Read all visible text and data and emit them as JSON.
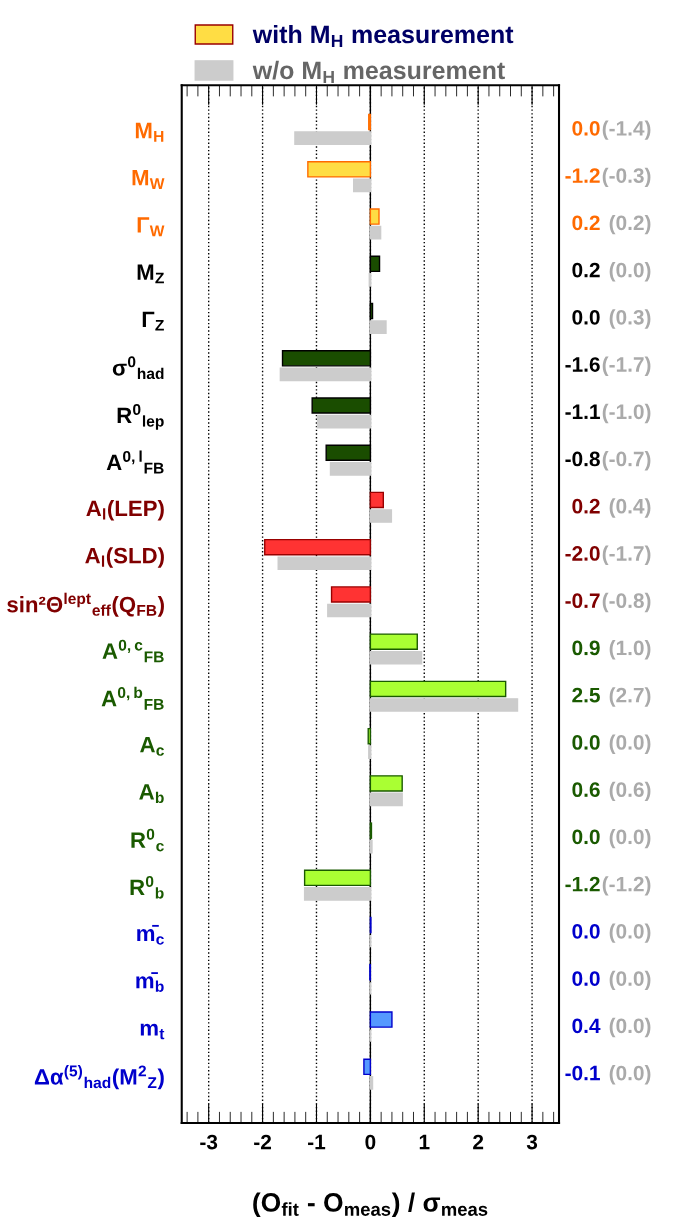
{
  "chart_data": {
    "type": "bar",
    "orientation": "horizontal",
    "xlabel": "(O$_{fit}$ - O$_{meas}$) / σ$_{meas}$",
    "categories": [
      "M$_{H}$",
      "M$_{W}$",
      "Γ$_{W}$",
      "M$_{Z}$",
      "Γ$_{Z}$",
      "σ$^{0}$$_{had}$",
      "R$^{0}$$_{lep}$",
      "A$^{0,l}$$_{FB}$",
      "A$_{l}$(LEP)",
      "A$_{l}$(SLD)",
      "sin²Θ$^{lept}$$_{eff}$(Q$_{FB}$)",
      "A$^{0,c}$$_{FB}$",
      "A$^{0,b}$$_{FB}$",
      "A$_{c}$",
      "A$_{b}$",
      "R$^{0}$$_{c}$",
      "R$^{0}$$_{b}$",
      "m̄$_{c}$",
      "m̄$_{b}$",
      "m$_{t}$",
      "Δα$^{(5)}$$_{had}$(M$^{2}$$_{Z}$)"
    ],
    "series": [
      {
        "name": "with M$_{H}$ measurement",
        "color": "#ffdd44",
        "colors": [
          "#ff9900",
          "#ffdd44",
          "#ffdd44",
          "#1a4d00",
          "#1a4d00",
          "#1a4d00",
          "#1a4d00",
          "#1a4d00",
          "#ff3333",
          "#ff3333",
          "#ff3333",
          "#aaff33",
          "#aaff33",
          "#aaff33",
          "#aaff33",
          "#aaff33",
          "#aaff33",
          "#5599ff",
          "#5599ff",
          "#5599ff",
          "#5599ff"
        ],
        "values": [
          -0.03,
          -1.16,
          0.16,
          0.17,
          0.04,
          -1.63,
          -1.08,
          -0.82,
          0.24,
          -1.96,
          -0.72,
          0.87,
          2.51,
          -0.04,
          0.59,
          0.02,
          -1.22,
          0.01,
          -0.01,
          0.4,
          -0.12
        ],
        "value_labels": [
          "0.0",
          "-1.2",
          "0.2",
          "0.2",
          "0.0",
          "-1.6",
          "-1.1",
          "-0.8",
          "0.2",
          "-2.0",
          "-0.7",
          "0.9",
          "2.5",
          "0.0",
          "0.6",
          "0.0",
          "-1.2",
          "0.0",
          "0.0",
          "0.4",
          "-0.1"
        ]
      },
      {
        "name": "w/o M$_{H}$ measurement",
        "color": "#cccccc",
        "values": [
          -1.4,
          -0.31,
          0.19,
          -0.02,
          0.29,
          -1.67,
          -0.98,
          -0.74,
          0.39,
          -1.71,
          -0.79,
          0.95,
          2.73,
          -0.03,
          0.59,
          0.03,
          -1.22,
          0.0,
          0.0,
          0.0,
          0.04
        ],
        "value_labels": [
          "(-1.4)",
          "(-0.3)",
          "(0.2)",
          "(0.0)",
          "(0.3)",
          "(-1.7)",
          "(-1.0)",
          "(-0.7)",
          "(0.4)",
          "(-1.7)",
          "(-0.8)",
          "(1.0)",
          "(2.7)",
          "(0.0)",
          "(0.6)",
          "(0.0)",
          "(-1.2)",
          "(0.0)",
          "(0.0)",
          "(0.0)",
          "(0.0)"
        ]
      }
    ],
    "xlim": [
      -3.5,
      3.5
    ],
    "xticks": [
      -3,
      -2,
      -1,
      0,
      1,
      2,
      3
    ],
    "ref_lines": [
      {
        "axis": "x",
        "value": 0,
        "color": "#000000",
        "line_style": "solid"
      }
    ],
    "grid": "x",
    "legend": "top",
    "tick_labels": "x"
  }
}
